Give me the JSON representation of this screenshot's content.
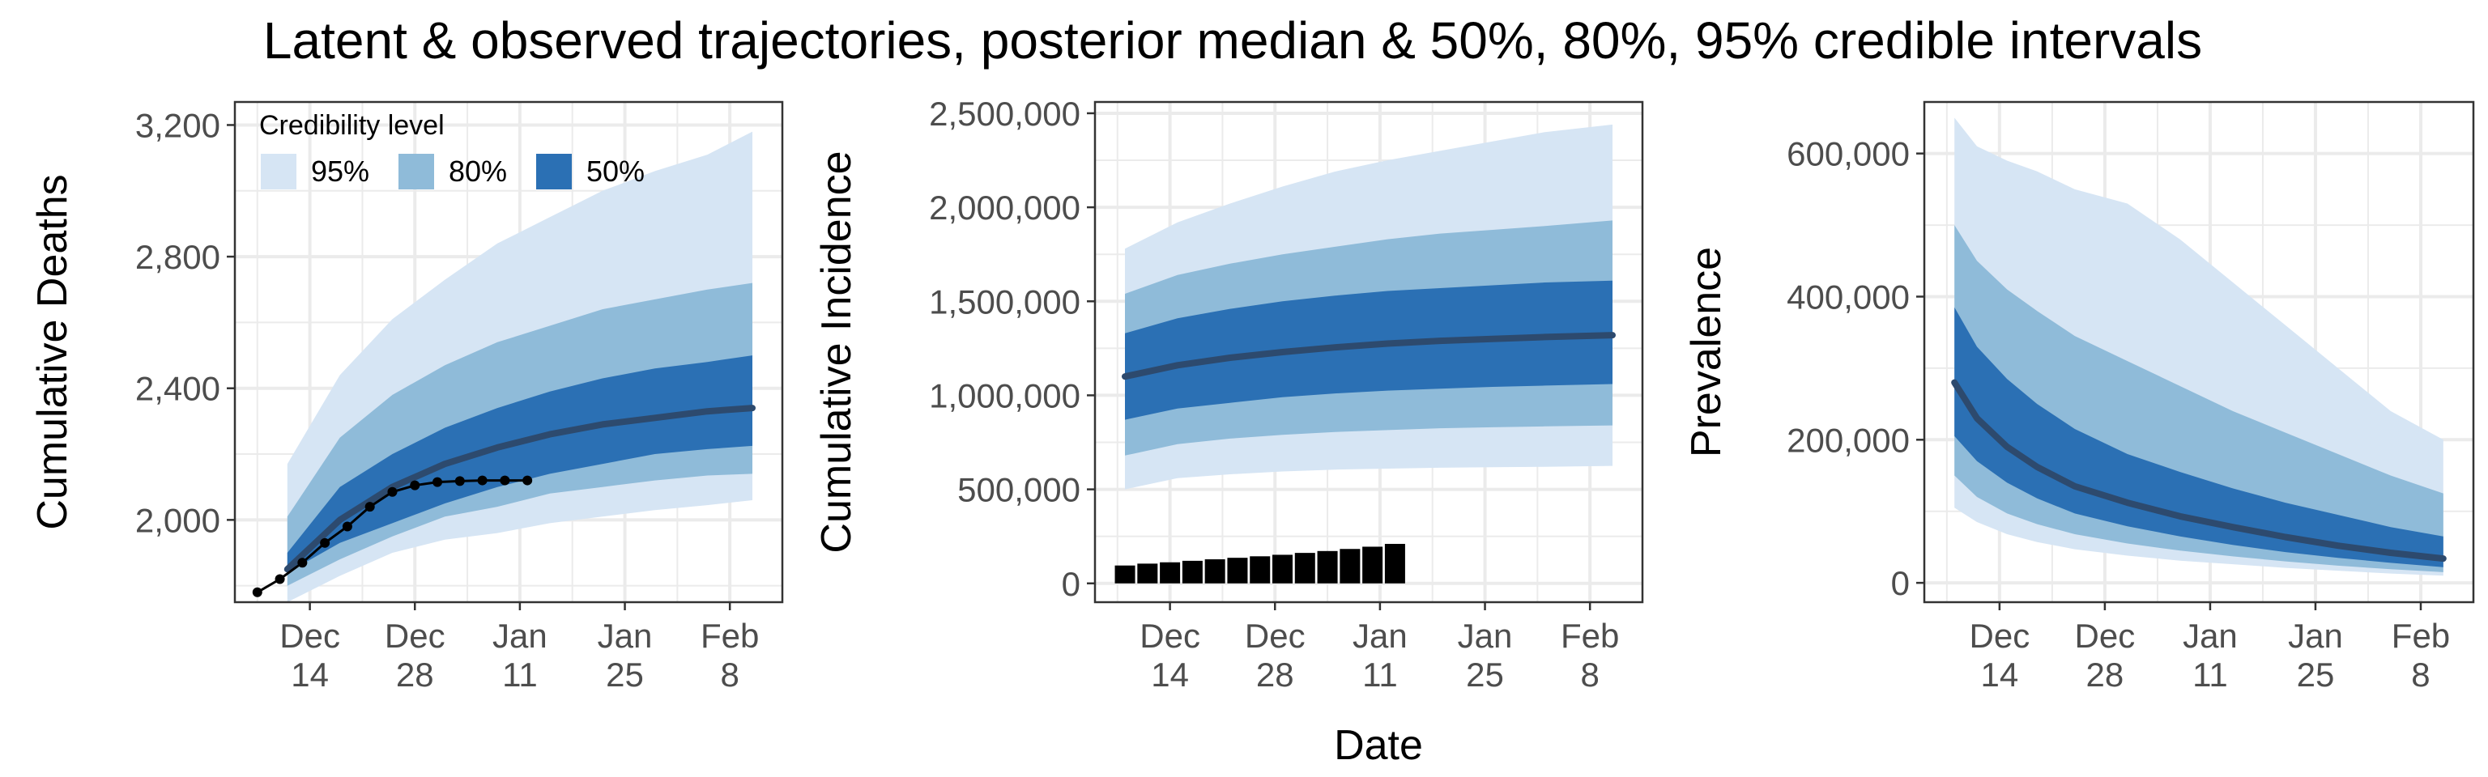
{
  "title": "Latent & observed trajectories, posterior median & 50%, 80%, 95% credible intervals",
  "shared_xlabel": "Date",
  "colors": {
    "band95": "#d6e5f4",
    "band80": "#8fbbd9",
    "band50": "#2b70b4",
    "median": "#2d4a6e",
    "observed": "#000000",
    "grid": "#ebebeb",
    "panel_border": "#333333"
  },
  "legend": {
    "title": "Credibility level",
    "items": [
      {
        "label": "95%",
        "level": "95"
      },
      {
        "label": "80%",
        "level": "80"
      },
      {
        "label": "50%",
        "level": "50"
      }
    ]
  },
  "chart_data": [
    {
      "type": "area",
      "ylabel": "Cumulative Deaths",
      "xlabel": "",
      "x_start": "2020-12-04",
      "x_end": "2021-02-15",
      "ylim": [
        1750,
        3270
      ],
      "grid": true,
      "legend_position": "top-left",
      "x_ticks": [
        {
          "date": "2020-12-14",
          "label": [
            "Dec",
            "14"
          ]
        },
        {
          "date": "2020-12-28",
          "label": [
            "Dec",
            "28"
          ]
        },
        {
          "date": "2021-01-11",
          "label": [
            "Jan",
            "11"
          ]
        },
        {
          "date": "2021-01-25",
          "label": [
            "Jan",
            "25"
          ]
        },
        {
          "date": "2021-02-08",
          "label": [
            "Feb",
            "8"
          ]
        }
      ],
      "y_ticks": [
        {
          "value": 2000,
          "label": "2,000"
        },
        {
          "value": 2400,
          "label": "2,400"
        },
        {
          "value": 2800,
          "label": "2,800"
        },
        {
          "value": 3200,
          "label": "3,200"
        }
      ],
      "bands": {
        "x": [
          "2020-12-11",
          "2020-12-18",
          "2020-12-25",
          "2021-01-01",
          "2021-01-08",
          "2021-01-15",
          "2021-01-22",
          "2021-01-29",
          "2021-02-05",
          "2021-02-11"
        ],
        "lo95": [
          1750,
          1830,
          1900,
          1940,
          1960,
          1990,
          2010,
          2030,
          2045,
          2060
        ],
        "hi95": [
          2170,
          2440,
          2610,
          2730,
          2840,
          2920,
          3000,
          3060,
          3110,
          3180
        ],
        "lo80": [
          1800,
          1880,
          1950,
          2010,
          2040,
          2080,
          2100,
          2120,
          2135,
          2140
        ],
        "hi80": [
          2010,
          2250,
          2380,
          2470,
          2540,
          2590,
          2640,
          2670,
          2700,
          2720
        ],
        "lo50": [
          1840,
          1930,
          1990,
          2050,
          2100,
          2140,
          2170,
          2200,
          2215,
          2225
        ],
        "hi50": [
          1900,
          2100,
          2200,
          2280,
          2340,
          2390,
          2430,
          2460,
          2480,
          2500
        ],
        "median": [
          1850,
          2000,
          2100,
          2170,
          2220,
          2260,
          2290,
          2310,
          2330,
          2340
        ]
      },
      "observed": {
        "x": [
          "2020-12-07",
          "2020-12-10",
          "2020-12-13",
          "2020-12-16",
          "2020-12-19",
          "2020-12-22",
          "2020-12-25",
          "2020-12-28",
          "2020-12-31",
          "2021-01-03",
          "2021-01-06",
          "2021-01-09",
          "2021-01-12"
        ],
        "y": [
          1780,
          1820,
          1870,
          1930,
          1980,
          2040,
          2085,
          2105,
          2115,
          2118,
          2120,
          2120,
          2120
        ]
      }
    },
    {
      "type": "area",
      "ylabel": "Cumulative Incidence",
      "xlabel": "Date",
      "x_start": "2020-12-04",
      "x_end": "2021-02-15",
      "ylim": [
        -100000,
        2560000
      ],
      "grid": true,
      "x_ticks": [
        {
          "date": "2020-12-14",
          "label": [
            "Dec",
            "14"
          ]
        },
        {
          "date": "2020-12-28",
          "label": [
            "Dec",
            "28"
          ]
        },
        {
          "date": "2021-01-11",
          "label": [
            "Jan",
            "11"
          ]
        },
        {
          "date": "2021-01-25",
          "label": [
            "Jan",
            "25"
          ]
        },
        {
          "date": "2021-02-08",
          "label": [
            "Feb",
            "8"
          ]
        }
      ],
      "y_ticks": [
        {
          "value": 0,
          "label": "0"
        },
        {
          "value": 500000,
          "label": "500,000"
        },
        {
          "value": 1000000,
          "label": "1,000,000"
        },
        {
          "value": 1500000,
          "label": "1,500,000"
        },
        {
          "value": 2000000,
          "label": "2,000,000"
        },
        {
          "value": 2500000,
          "label": "2,500,000"
        }
      ],
      "bands": {
        "x": [
          "2020-12-08",
          "2020-12-15",
          "2020-12-22",
          "2020-12-29",
          "2021-01-05",
          "2021-01-12",
          "2021-01-19",
          "2021-01-26",
          "2021-02-02",
          "2021-02-11"
        ],
        "lo95": [
          500000,
          560000,
          580000,
          595000,
          605000,
          610000,
          615000,
          618000,
          620000,
          625000
        ],
        "hi95": [
          1780000,
          1920000,
          2020000,
          2110000,
          2190000,
          2250000,
          2300000,
          2350000,
          2400000,
          2440000
        ],
        "lo80": [
          680000,
          740000,
          770000,
          790000,
          805000,
          815000,
          825000,
          830000,
          835000,
          840000
        ],
        "hi80": [
          1540000,
          1640000,
          1700000,
          1750000,
          1790000,
          1830000,
          1860000,
          1880000,
          1900000,
          1930000
        ],
        "lo50": [
          870000,
          930000,
          960000,
          990000,
          1010000,
          1025000,
          1035000,
          1045000,
          1052000,
          1060000
        ],
        "hi50": [
          1330000,
          1410000,
          1460000,
          1500000,
          1530000,
          1555000,
          1570000,
          1585000,
          1600000,
          1610000
        ],
        "median": [
          1100000,
          1160000,
          1200000,
          1230000,
          1255000,
          1275000,
          1290000,
          1300000,
          1310000,
          1320000
        ]
      },
      "bars": {
        "x": [
          "2020-12-08",
          "2020-12-11",
          "2020-12-14",
          "2020-12-17",
          "2020-12-20",
          "2020-12-23",
          "2020-12-26",
          "2020-12-29",
          "2021-01-01",
          "2021-01-04",
          "2021-01-07",
          "2021-01-10",
          "2021-01-13"
        ],
        "y": [
          95000,
          105000,
          112000,
          120000,
          128000,
          136000,
          144000,
          152000,
          162000,
          172000,
          183000,
          195000,
          210000
        ]
      }
    },
    {
      "type": "area",
      "ylabel": "Prevalence",
      "xlabel": "",
      "x_start": "2020-12-04",
      "x_end": "2021-02-15",
      "ylim": [
        -27000,
        672000
      ],
      "grid": true,
      "x_ticks": [
        {
          "date": "2020-12-14",
          "label": [
            "Dec",
            "14"
          ]
        },
        {
          "date": "2020-12-28",
          "label": [
            "Dec",
            "28"
          ]
        },
        {
          "date": "2021-01-11",
          "label": [
            "Jan",
            "11"
          ]
        },
        {
          "date": "2021-01-25",
          "label": [
            "Jan",
            "25"
          ]
        },
        {
          "date": "2021-02-08",
          "label": [
            "Feb",
            "8"
          ]
        }
      ],
      "y_ticks": [
        {
          "value": 0,
          "label": "0"
        },
        {
          "value": 200000,
          "label": "200,000"
        },
        {
          "value": 400000,
          "label": "400,000"
        },
        {
          "value": 600000,
          "label": "600,000"
        }
      ],
      "bands": {
        "x": [
          "2020-12-08",
          "2020-12-11",
          "2020-12-15",
          "2020-12-19",
          "2020-12-24",
          "2020-12-31",
          "2021-01-07",
          "2021-01-14",
          "2021-01-21",
          "2021-01-28",
          "2021-02-04",
          "2021-02-11"
        ],
        "lo95": [
          105000,
          85000,
          68000,
          57000,
          47000,
          38000,
          31000,
          26000,
          21000,
          17000,
          13000,
          10000
        ],
        "hi95": [
          650000,
          610000,
          590000,
          575000,
          550000,
          530000,
          480000,
          420000,
          360000,
          300000,
          240000,
          200000
        ],
        "lo80": [
          150000,
          120000,
          97000,
          82000,
          68000,
          55000,
          45000,
          37000,
          30000,
          24000,
          19000,
          15000
        ],
        "hi80": [
          500000,
          450000,
          410000,
          380000,
          345000,
          310000,
          275000,
          240000,
          210000,
          180000,
          150000,
          125000
        ],
        "lo50": [
          205000,
          170000,
          140000,
          118000,
          97000,
          79000,
          65000,
          53000,
          43000,
          35000,
          28000,
          22000
        ],
        "hi50": [
          385000,
          330000,
          285000,
          250000,
          215000,
          180000,
          155000,
          132000,
          112000,
          95000,
          78000,
          65000
        ],
        "median": [
          280000,
          230000,
          190000,
          162000,
          135000,
          112000,
          93000,
          78000,
          64000,
          52000,
          42000,
          34000
        ]
      }
    }
  ]
}
